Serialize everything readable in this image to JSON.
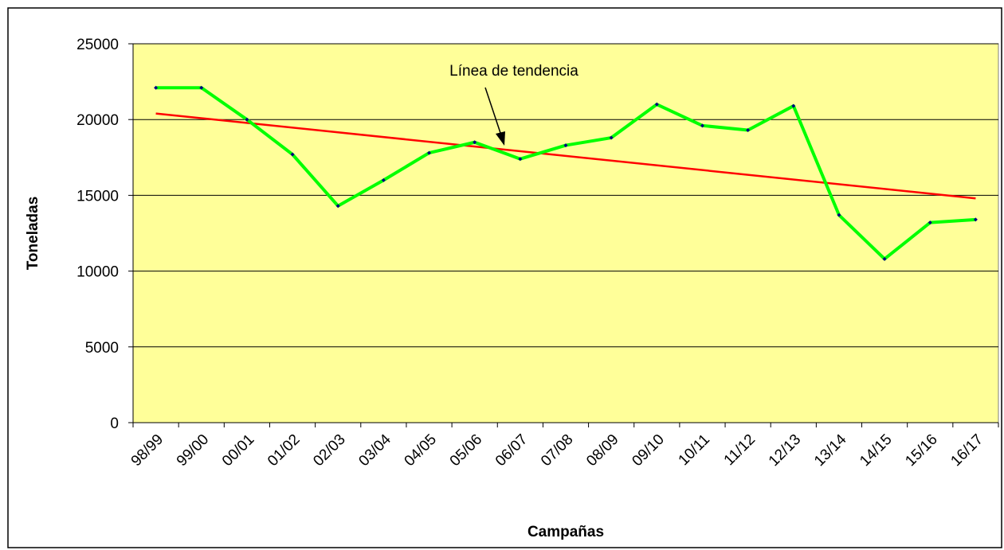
{
  "chart_data": {
    "type": "line",
    "xlabel": "Campañas",
    "ylabel": "Toneladas",
    "categories": [
      "98/99",
      "99/00",
      "00/01",
      "01/02",
      "02/03",
      "03/04",
      "04/05",
      "05/06",
      "06/07",
      "07/08",
      "08/09",
      "09/10",
      "10/11",
      "11/12",
      "12/13",
      "13/14",
      "14/15",
      "15/16",
      "16/17"
    ],
    "series": [
      {
        "color": "#00ff00",
        "marker_color": "#000080",
        "values": [
          22100,
          22100,
          20000,
          17700,
          14300,
          16000,
          17800,
          18500,
          17400,
          18300,
          18800,
          21000,
          19600,
          19300,
          20900,
          13700,
          10800,
          13200,
          13400
        ]
      }
    ],
    "trend": {
      "start": 20400,
      "end": 14800,
      "color": "#ff0000"
    },
    "annotation": "Línea de tendencia",
    "ylim": [
      0,
      25000
    ],
    "yticks": [
      0,
      5000,
      10000,
      15000,
      20000,
      25000
    ],
    "grid": true,
    "background": "#ffff99"
  }
}
